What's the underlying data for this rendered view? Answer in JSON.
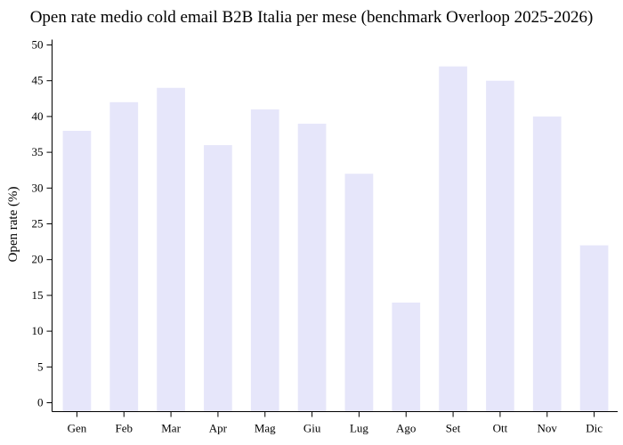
{
  "chart_data": {
    "type": "bar",
    "title": "Open rate medio cold email B2B Italia per mese (benchmark Overloop 2025-2026)",
    "xlabel": "",
    "ylabel": "Open rate (%)",
    "categories": [
      "Gen",
      "Feb",
      "Mar",
      "Apr",
      "Mag",
      "Giu",
      "Lug",
      "Ago",
      "Set",
      "Ott",
      "Nov",
      "Dic"
    ],
    "values": [
      38,
      42,
      44,
      36,
      41,
      39,
      32,
      14,
      47,
      45,
      40,
      22
    ],
    "ylim": [
      0,
      50
    ],
    "yticks": [
      0,
      5,
      10,
      15,
      20,
      25,
      30,
      35,
      40,
      45,
      50
    ],
    "bar_color": "#e6e6fa",
    "grid": false,
    "legend": "none"
  }
}
